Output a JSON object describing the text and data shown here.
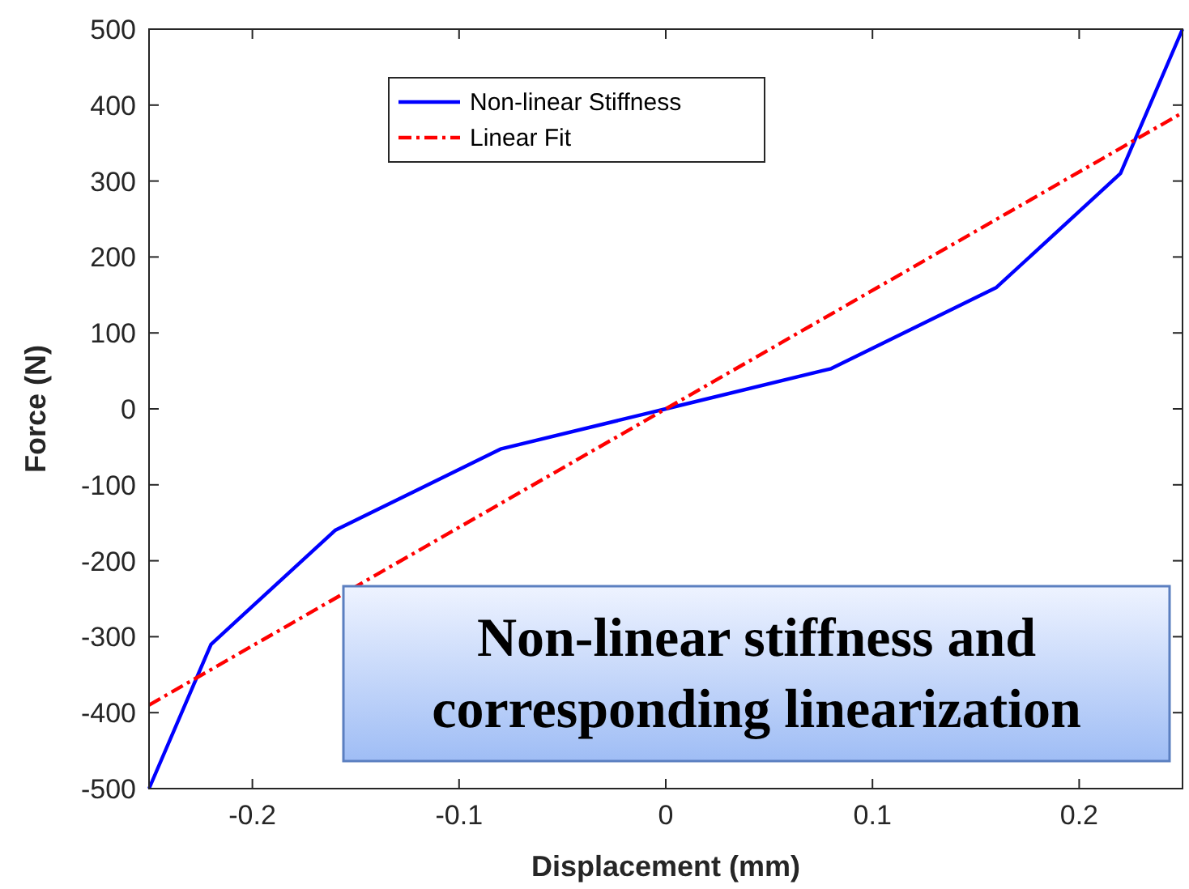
{
  "chart_data": {
    "type": "line",
    "xlabel": "Displacement (mm)",
    "ylabel": "Force (N)",
    "xlim": [
      -0.25,
      0.25
    ],
    "xticks": [
      -0.2,
      -0.1,
      0,
      0.1,
      0.2
    ],
    "ylim": [
      -500,
      500
    ],
    "yticks": [
      -500,
      -400,
      -300,
      -200,
      -100,
      0,
      100,
      200,
      300,
      400,
      500
    ],
    "grid": false,
    "legend": "top",
    "series": [
      {
        "name": "Non-linear Stiffness",
        "color": "#0000ff",
        "line_style": "solid",
        "x": [
          -0.25,
          -0.22,
          -0.16,
          -0.08,
          0,
          0.08,
          0.16,
          0.22,
          0.25
        ],
        "values": [
          -500,
          -310,
          -160,
          -53,
          0,
          53,
          160,
          310,
          500
        ]
      },
      {
        "name": "Linear Fit",
        "color": "#ff0000",
        "line_style": "dashed",
        "x": [
          -0.25,
          0.25
        ],
        "values": [
          -390,
          390
        ]
      }
    ],
    "annotations": [
      "Non-linear stiffness and\ncorresponding linearization"
    ]
  }
}
